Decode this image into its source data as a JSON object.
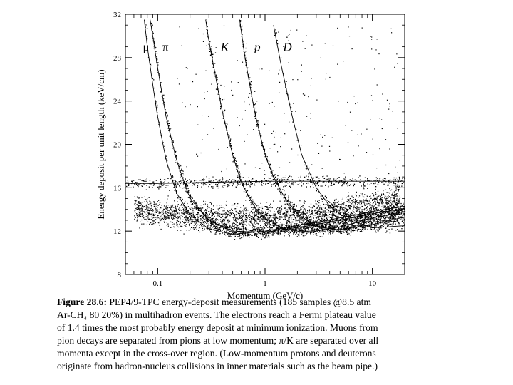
{
  "chart_data": {
    "type": "scatter",
    "title": "",
    "xlabel": "Momentum (GeV/c)",
    "ylabel": "Energy deposit per unit length (keV/cm)",
    "x_scale": "log",
    "xlim": [
      0.05,
      20
    ],
    "ylim": [
      8,
      32
    ],
    "x_ticks": [
      {
        "value": 0.1,
        "label": "0.1"
      },
      {
        "value": 1,
        "label": "1"
      },
      {
        "value": 10,
        "label": "10"
      }
    ],
    "y_ticks": [
      {
        "value": 8,
        "label": "8"
      },
      {
        "value": 12,
        "label": "12"
      },
      {
        "value": 16,
        "label": "16"
      },
      {
        "value": 20,
        "label": "20"
      },
      {
        "value": 24,
        "label": "24"
      },
      {
        "value": 28,
        "label": "28"
      },
      {
        "value": 32,
        "label": "32"
      }
    ],
    "grid": false,
    "series": [
      {
        "name": "μ",
        "label_pos": {
          "x": 0.078,
          "y": 28.6
        },
        "x": [
          0.075,
          0.08,
          0.09,
          0.1,
          0.12,
          0.15,
          0.2,
          0.3,
          0.5,
          1,
          3,
          10,
          20
        ],
        "y": [
          31.5,
          29.0,
          25.5,
          22.5,
          18.5,
          15.5,
          13.5,
          12.2,
          11.7,
          12.0,
          12.8,
          13.8,
          14.3
        ]
      },
      {
        "name": "π",
        "label_pos": {
          "x": 0.118,
          "y": 28.6
        },
        "x": [
          0.085,
          0.09,
          0.1,
          0.12,
          0.15,
          0.2,
          0.3,
          0.5,
          1,
          3,
          10,
          20
        ],
        "y": [
          31.5,
          30.0,
          27.0,
          22.5,
          18.5,
          15.0,
          13.0,
          12.0,
          11.9,
          12.6,
          13.6,
          14.1
        ]
      },
      {
        "name": "K",
        "label_pos": {
          "x": 0.42,
          "y": 28.6
        },
        "x": [
          0.28,
          0.3,
          0.35,
          0.4,
          0.5,
          0.6,
          0.8,
          1,
          1.5,
          2,
          3,
          5,
          10,
          20
        ],
        "y": [
          31.5,
          29.5,
          26.0,
          23.0,
          19.0,
          16.5,
          14.2,
          13.2,
          12.2,
          12.0,
          12.0,
          12.4,
          13.2,
          13.8
        ]
      },
      {
        "name": "p",
        "label_pos": {
          "x": 0.85,
          "y": 28.6
        },
        "x": [
          0.58,
          0.65,
          0.8,
          1,
          1.2,
          1.5,
          2,
          3,
          5,
          10,
          20
        ],
        "y": [
          31.5,
          28.0,
          23.0,
          19.0,
          17.0,
          15.2,
          13.6,
          12.4,
          12.1,
          12.6,
          13.3
        ]
      },
      {
        "name": "D",
        "label_pos": {
          "x": 1.62,
          "y": 28.6
        },
        "x": [
          1.2,
          1.4,
          1.8,
          2.2,
          3,
          4,
          6,
          10,
          20
        ],
        "y": [
          31.0,
          27.5,
          22.5,
          19.0,
          16.0,
          14.3,
          13.0,
          12.3,
          12.5
        ]
      },
      {
        "name": "e",
        "x": [
          0.05,
          0.1,
          0.3,
          1,
          3,
          10,
          20
        ],
        "y": [
          16.4,
          16.4,
          16.5,
          16.6,
          16.6,
          16.6,
          16.6
        ]
      }
    ]
  },
  "caption": {
    "label": "Figure 28.6:",
    "lines": [
      " PEP4/9-TPC energy-deposit measurements (185 samples @8.5 atm",
      "Ar-CH₄ 80 20%) in multihadron events. The electrons reach a Fermi plateau value",
      "of 1.4 times the most probably energy deposit at minimum ionization. Muons from",
      "pion decays are separated from pions at low momentum; π/K are separated over all",
      "momenta except in the cross-over region. (Low-momentum protons and deuterons",
      "originate from hadron-nucleus collisions in inner materials such as the beam pipe.)"
    ]
  }
}
